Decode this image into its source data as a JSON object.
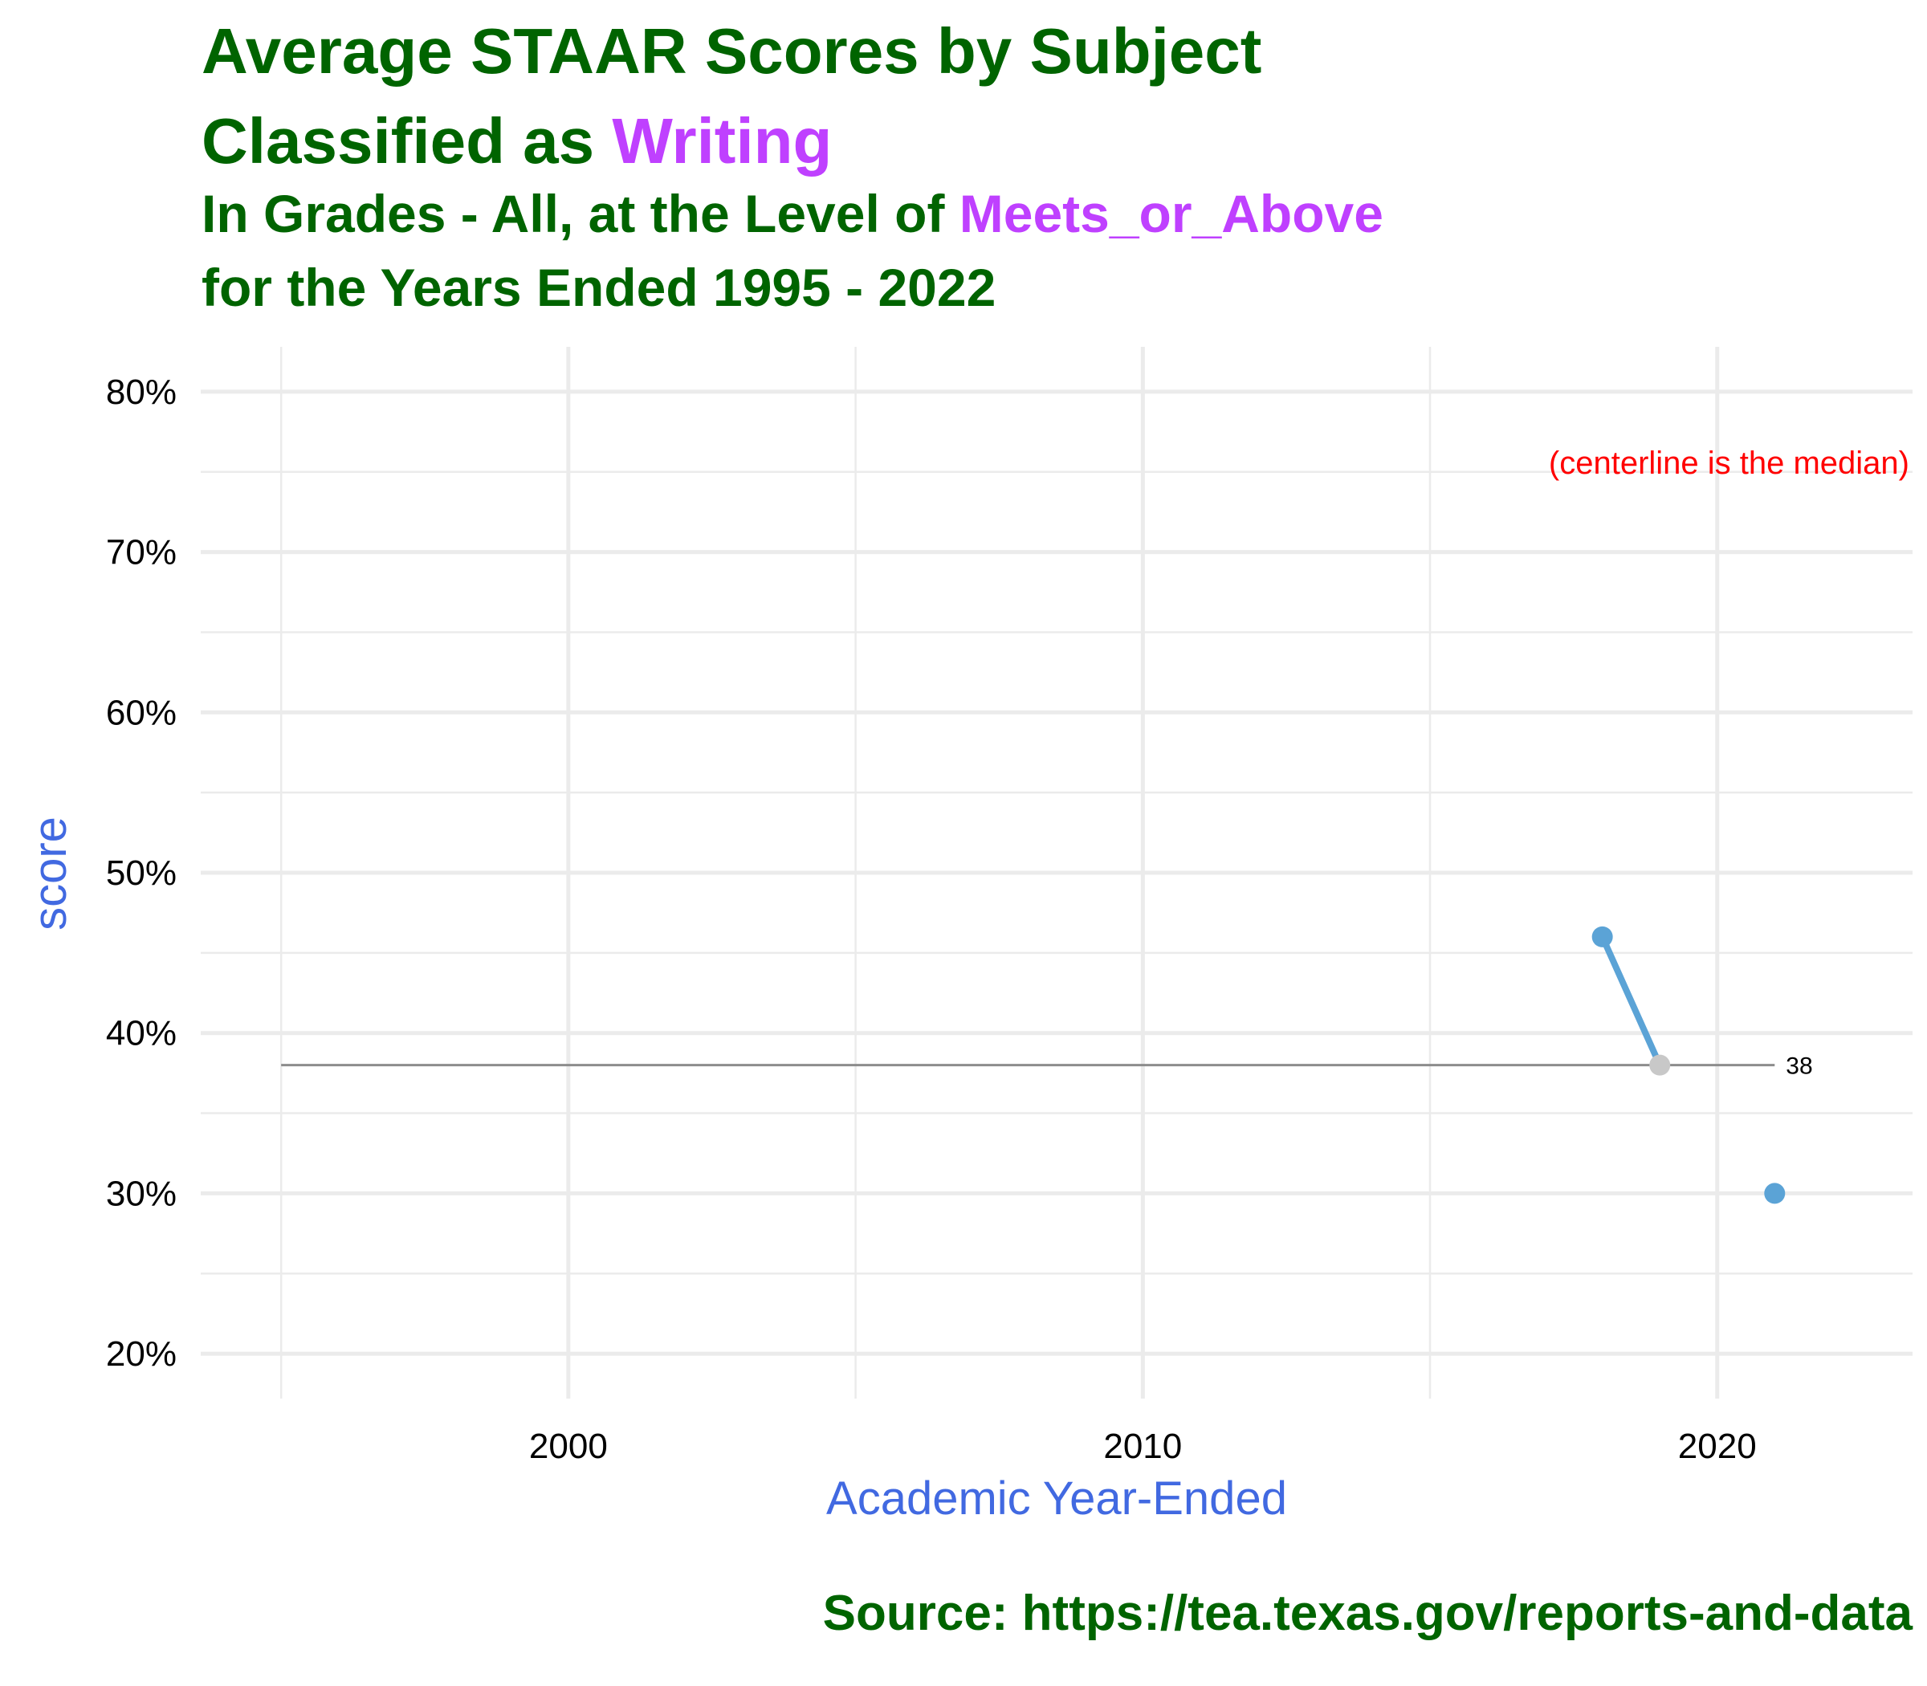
{
  "title": {
    "line1": "Average STAAR Scores by Subject",
    "line2_prefix": "Classified as ",
    "line2_highlight": "Writing",
    "line3_prefix": "In Grades - All, at the Level of ",
    "line3_highlight": "Meets_or_Above",
    "line4": "for the Years Ended 1995 - 2022"
  },
  "caption": "Source:  https://tea.texas.gov/reports-and-data",
  "colors": {
    "title": "#006400",
    "highlight": "#bf40ff",
    "axis_title": "#4169e1",
    "series": "#5ba3d6",
    "median_point": "#c8c8c8",
    "median_line": "#8c8c8c",
    "annotation": "#ff0000",
    "grid": "#ebebeb"
  },
  "chart_data": {
    "type": "line",
    "xlabel": "Academic Year-Ended",
    "ylabel": "score",
    "xlim": [
      1995,
      2022
    ],
    "ylim": [
      20,
      80
    ],
    "x_ticks": [
      "2000",
      "2010",
      "2020"
    ],
    "y_ticks": [
      "20%",
      "30%",
      "40%",
      "50%",
      "60%",
      "70%",
      "80%"
    ],
    "grid": true,
    "points": [
      {
        "x": 2018,
        "y": 46
      },
      {
        "x": 2019,
        "y": 38
      },
      {
        "x": 2021,
        "y": 30
      }
    ],
    "median": 38,
    "median_label": "38",
    "annotation": "(centerline is the median)"
  }
}
